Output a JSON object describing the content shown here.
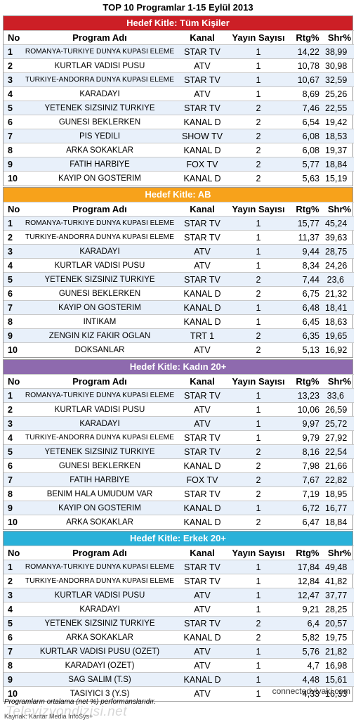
{
  "title": "TOP 10 Programlar 1-15 Eylül 2013",
  "columns": {
    "no": "No",
    "program": "Program Adı",
    "channel": "Kanal",
    "airings": "Yayın Sayısı",
    "rtg": "Rtg%",
    "shr": "Shr%"
  },
  "colors": {
    "tum": "#cc1f26",
    "ab": "#f7a21b",
    "kadin": "#8e6aae",
    "erkek": "#29b1d9"
  },
  "sections": [
    {
      "header": "Hedef Kitle: Tüm Kişiler",
      "rows": [
        {
          "no": "1",
          "program": "ROMANYA-TURKIYE DUNYA KUPASI ELEME",
          "channel": "STAR TV",
          "airings": "1",
          "rtg": "14,22",
          "shr": "38,99"
        },
        {
          "no": "2",
          "program": "KURTLAR VADISI PUSU",
          "channel": "ATV",
          "airings": "1",
          "rtg": "10,78",
          "shr": "30,98"
        },
        {
          "no": "3",
          "program": "TURKIYE-ANDORRA DUNYA KUPASI ELEME",
          "channel": "STAR TV",
          "airings": "1",
          "rtg": "10,67",
          "shr": "32,59"
        },
        {
          "no": "4",
          "program": "KARADAYI",
          "channel": "ATV",
          "airings": "1",
          "rtg": "8,69",
          "shr": "25,26"
        },
        {
          "no": "5",
          "program": "YETENEK SIZSINIZ TURKIYE",
          "channel": "STAR TV",
          "airings": "2",
          "rtg": "7,46",
          "shr": "22,55"
        },
        {
          "no": "6",
          "program": "GUNESI BEKLERKEN",
          "channel": "KANAL D",
          "airings": "2",
          "rtg": "6,54",
          "shr": "19,42"
        },
        {
          "no": "7",
          "program": "PIS YEDILI",
          "channel": "SHOW TV",
          "airings": "2",
          "rtg": "6,08",
          "shr": "18,53"
        },
        {
          "no": "8",
          "program": "ARKA SOKAKLAR",
          "channel": "KANAL D",
          "airings": "2",
          "rtg": "6,08",
          "shr": "19,37"
        },
        {
          "no": "9",
          "program": "FATIH HARBIYE",
          "channel": "FOX TV",
          "airings": "2",
          "rtg": "5,77",
          "shr": "18,84"
        },
        {
          "no": "10",
          "program": "KAYIP ON GOSTERIM",
          "channel": "KANAL D",
          "airings": "2",
          "rtg": "5,63",
          "shr": "15,19"
        }
      ]
    },
    {
      "header": "Hedef Kitle: AB",
      "rows": [
        {
          "no": "1",
          "program": "ROMANYA-TURKIYE DUNYA KUPASI ELEME",
          "channel": "STAR TV",
          "airings": "1",
          "rtg": "15,77",
          "shr": "45,24"
        },
        {
          "no": "2",
          "program": "TURKIYE-ANDORRA DUNYA KUPASI ELEME",
          "channel": "STAR TV",
          "airings": "1",
          "rtg": "11,37",
          "shr": "39,63"
        },
        {
          "no": "3",
          "program": "KARADAYI",
          "channel": "ATV",
          "airings": "1",
          "rtg": "9,44",
          "shr": "28,75"
        },
        {
          "no": "4",
          "program": "KURTLAR VADISI PUSU",
          "channel": "ATV",
          "airings": "1",
          "rtg": "8,34",
          "shr": "24,26"
        },
        {
          "no": "5",
          "program": "YETENEK SIZSINIZ TURKIYE",
          "channel": "STAR TV",
          "airings": "2",
          "rtg": "7,44",
          "shr": "23,6"
        },
        {
          "no": "6",
          "program": "GUNESI BEKLERKEN",
          "channel": "KANAL D",
          "airings": "2",
          "rtg": "6,75",
          "shr": "21,32"
        },
        {
          "no": "7",
          "program": "KAYIP ON GOSTERIM",
          "channel": "KANAL D",
          "airings": "1",
          "rtg": "6,48",
          "shr": "18,41"
        },
        {
          "no": "8",
          "program": "INTIKAM",
          "channel": "KANAL D",
          "airings": "1",
          "rtg": "6,45",
          "shr": "18,63"
        },
        {
          "no": "9",
          "program": "ZENGIN KIZ FAKIR OGLAN",
          "channel": "TRT 1",
          "airings": "2",
          "rtg": "6,35",
          "shr": "19,65"
        },
        {
          "no": "10",
          "program": "DOKSANLAR",
          "channel": "ATV",
          "airings": "2",
          "rtg": "5,13",
          "shr": "16,92"
        }
      ]
    },
    {
      "header": "Hedef Kitle: Kadın 20+",
      "rows": [
        {
          "no": "1",
          "program": "ROMANYA-TURKIYE DUNYA KUPASI ELEME",
          "channel": "STAR TV",
          "airings": "1",
          "rtg": "13,23",
          "shr": "33,6"
        },
        {
          "no": "2",
          "program": "KURTLAR VADISI PUSU",
          "channel": "ATV",
          "airings": "1",
          "rtg": "10,06",
          "shr": "26,59"
        },
        {
          "no": "3",
          "program": "KARADAYI",
          "channel": "ATV",
          "airings": "1",
          "rtg": "9,97",
          "shr": "25,72"
        },
        {
          "no": "4",
          "program": "TURKIYE-ANDORRA DUNYA KUPASI ELEME",
          "channel": "STAR TV",
          "airings": "1",
          "rtg": "9,79",
          "shr": "27,92"
        },
        {
          "no": "5",
          "program": "YETENEK SIZSINIZ TURKIYE",
          "channel": "STAR TV",
          "airings": "2",
          "rtg": "8,16",
          "shr": "22,54"
        },
        {
          "no": "6",
          "program": "GUNESI BEKLERKEN",
          "channel": "KANAL D",
          "airings": "2",
          "rtg": "7,98",
          "shr": "21,66"
        },
        {
          "no": "7",
          "program": "FATIH HARBIYE",
          "channel": "FOX TV",
          "airings": "2",
          "rtg": "7,67",
          "shr": "22,82"
        },
        {
          "no": "8",
          "program": "BENIM HALA UMUDUM VAR",
          "channel": "STAR TV",
          "airings": "2",
          "rtg": "7,19",
          "shr": "18,95"
        },
        {
          "no": "9",
          "program": "KAYIP ON GOSTERIM",
          "channel": "KANAL D",
          "airings": "1",
          "rtg": "6,72",
          "shr": "16,77"
        },
        {
          "no": "10",
          "program": "ARKA SOKAKLAR",
          "channel": "KANAL D",
          "airings": "2",
          "rtg": "6,47",
          "shr": "18,84"
        }
      ]
    },
    {
      "header": "Hedef Kitle: Erkek 20+",
      "rows": [
        {
          "no": "1",
          "program": "ROMANYA-TURKIYE DUNYA KUPASI ELEME",
          "channel": "STAR TV",
          "airings": "1",
          "rtg": "17,84",
          "shr": "49,48"
        },
        {
          "no": "2",
          "program": "TURKIYE-ANDORRA DUNYA KUPASI ELEME",
          "channel": "STAR TV",
          "airings": "1",
          "rtg": "12,84",
          "shr": "41,82"
        },
        {
          "no": "3",
          "program": "KURTLAR VADISI PUSU",
          "channel": "ATV",
          "airings": "1",
          "rtg": "12,47",
          "shr": "37,77"
        },
        {
          "no": "4",
          "program": "KARADAYI",
          "channel": "ATV",
          "airings": "1",
          "rtg": "9,21",
          "shr": "28,25"
        },
        {
          "no": "5",
          "program": "YETENEK SIZSINIZ TURKIYE",
          "channel": "STAR TV",
          "airings": "2",
          "rtg": "6,4",
          "shr": "20,57"
        },
        {
          "no": "6",
          "program": "ARKA SOKAKLAR",
          "channel": "KANAL D",
          "airings": "2",
          "rtg": "5,82",
          "shr": "19,75"
        },
        {
          "no": "7",
          "program": "KURTLAR VADISI PUSU (OZET)",
          "channel": "ATV",
          "airings": "1",
          "rtg": "5,76",
          "shr": "21,82"
        },
        {
          "no": "8",
          "program": "KARADAYI (OZET)",
          "channel": "ATV",
          "airings": "1",
          "rtg": "4,7",
          "shr": "16,98"
        },
        {
          "no": "9",
          "program": "SAG SALIM (T.S)",
          "channel": "KANAL D",
          "airings": "1",
          "rtg": "4,48",
          "shr": "15,61"
        },
        {
          "no": "10",
          "program": "TASIYICI 3 (Y.S)",
          "channel": "ATV",
          "airings": "1",
          "rtg": "4,33",
          "shr": "16,33"
        }
      ]
    }
  ],
  "footnote": "Programların ortalama (net %) performanslarıdır.",
  "source": "Kaynak: Kantar Media InfoSys+",
  "watermark_right": "connectedvivaki.com",
  "watermark_left": "Televizyondizisi.net"
}
